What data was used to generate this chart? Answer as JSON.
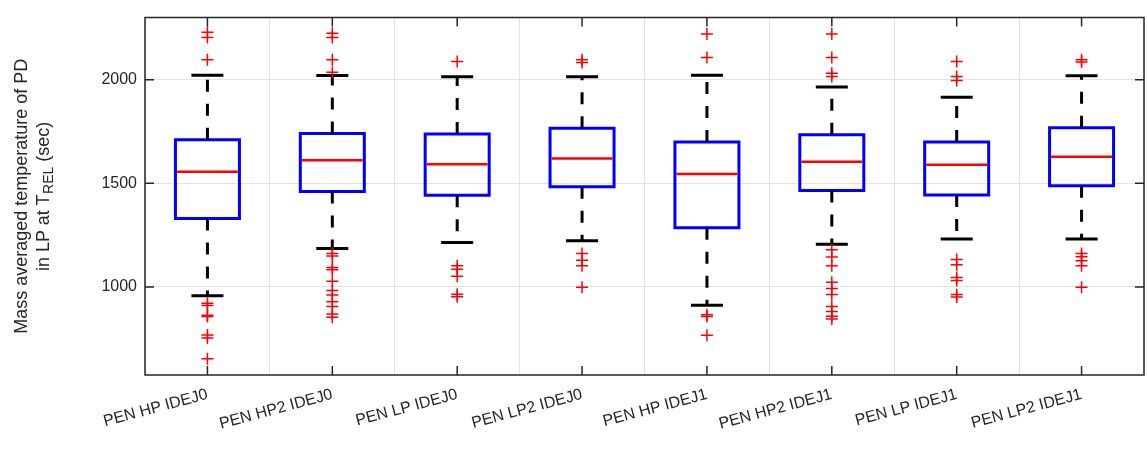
{
  "chart_data": {
    "type": "box",
    "ylabel": "Mass averaged temperature of PD\nin LP at T$_{REL}$ (sec)",
    "categories": [
      "PEN HP IDEJ0",
      "PEN HP2 IDEJ0",
      "PEN LP IDEJ0",
      "PEN LP2 IDEJ0",
      "PEN HP IDEJ1",
      "PEN HP2 IDEJ1",
      "PEN LP IDEJ1",
      "PEN LP2 IDEJ1"
    ],
    "ylim": [
      575,
      2300
    ],
    "yticks": [
      1000,
      1500,
      2000
    ],
    "grid": true,
    "legend": false,
    "series": [
      {
        "color": "#0000ff",
        "boxes": [
          {
            "low": 958,
            "q1": 1330,
            "median": 1556,
            "q3": 1711,
            "high": 2022,
            "outliers": [
              2229,
              2204,
              2096,
              921,
              910,
              863,
              857,
              768,
              753,
              653
            ]
          },
          {
            "low": 1185,
            "q1": 1461,
            "median": 1612,
            "q3": 1741,
            "high": 2020,
            "outliers": [
              2225,
              2204,
              2096,
              2036,
              1162,
              1149,
              1094,
              1083,
              1027,
              983,
              961,
              929,
              906,
              870,
              854
            ]
          },
          {
            "low": 1215,
            "q1": 1443,
            "median": 1592,
            "q3": 1738,
            "high": 2014,
            "outliers": [
              2088,
              1102,
              1086,
              1052,
              965,
              953
            ]
          },
          {
            "low": 1223,
            "q1": 1483,
            "median": 1620,
            "q3": 1766,
            "high": 2014,
            "outliers": [
              2096,
              2083,
              1162,
              1129,
              1102,
              998
            ]
          },
          {
            "low": 912,
            "q1": 1286,
            "median": 1545,
            "q3": 1699,
            "high": 2022,
            "outliers": [
              2221,
              2108,
              866,
              857,
              767
            ]
          },
          {
            "low": 1206,
            "q1": 1466,
            "median": 1604,
            "q3": 1735,
            "high": 1965,
            "outliers": [
              2221,
              2108,
              2031,
              2016,
              1180,
              1144,
              1102,
              1023,
              992,
              964,
              906,
              882,
              859,
              845
            ]
          },
          {
            "low": 1231,
            "q1": 1444,
            "median": 1590,
            "q3": 1699,
            "high": 1915,
            "outliers": [
              2088,
              2016,
              1997,
              1133,
              1107,
              1046,
              1031,
              964,
              952
            ]
          },
          {
            "low": 1231,
            "q1": 1488,
            "median": 1628,
            "q3": 1768,
            "high": 2019,
            "outliers": [
              2096,
              2086,
              1162,
              1146,
              1126,
              1102,
              998
            ]
          }
        ]
      }
    ]
  }
}
